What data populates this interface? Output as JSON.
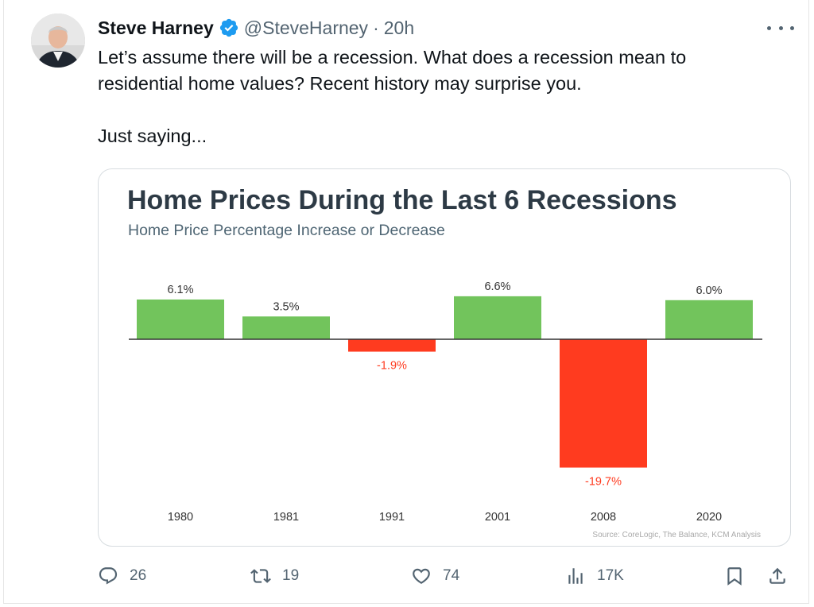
{
  "tweet": {
    "author_name": "Steve Harney",
    "handle": "@SteveHarney",
    "separator": "·",
    "time": "20h",
    "text_line1": "Let’s assume there will be a recession. What does a recession mean to",
    "text_line2": "residential home values? Recent history may surprise you.",
    "text_line3": "Just saying..."
  },
  "actions": {
    "replies": "26",
    "retweets": "19",
    "likes": "74",
    "views": "17K"
  },
  "colors": {
    "positive": "#72c45c",
    "negative": "#ff3b1f",
    "negative_label": "#ff3b1f",
    "verified": "#1d9bf0"
  },
  "chart_data": {
    "type": "bar",
    "title": "Home Prices During the Last 6 Recessions",
    "subtitle": "Home Price Percentage Increase or Decrease",
    "categories": [
      "1980",
      "1981",
      "1991",
      "2001",
      "2008",
      "2020"
    ],
    "values": [
      6.1,
      3.5,
      -1.9,
      6.6,
      -19.7,
      6.0
    ],
    "data_labels": [
      "6.1%",
      "3.5%",
      "-1.9%",
      "6.6%",
      "-19.7%",
      "6.0%"
    ],
    "source": "Source: CoreLogic, The Balance, KCM Analysis",
    "ylim": [
      -20,
      7
    ],
    "grid": false,
    "xlabel": "",
    "ylabel": ""
  }
}
